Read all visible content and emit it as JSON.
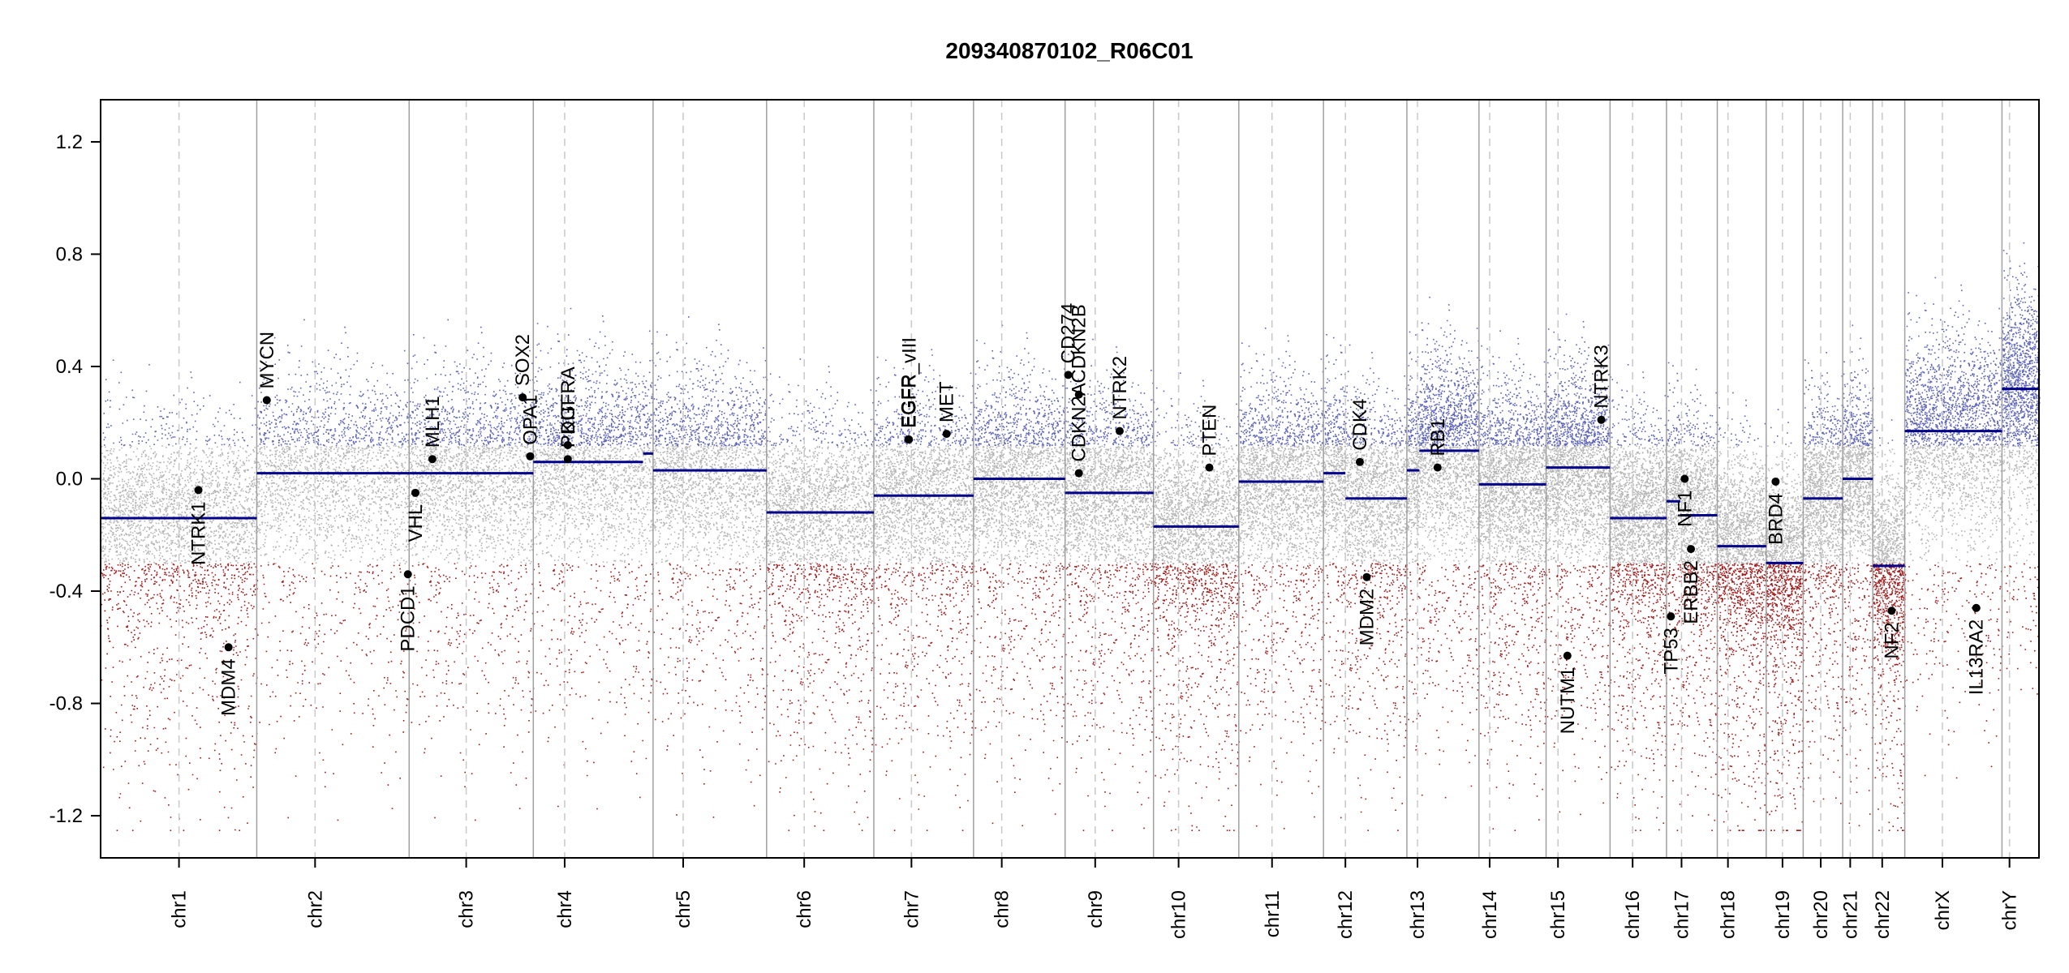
{
  "chart_data": {
    "type": "scatter",
    "title": "209340870102_R06C01",
    "xlabel": "",
    "ylabel": "",
    "ylim": [
      -1.35,
      1.35
    ],
    "y_ticks": [
      1.2,
      0.8,
      0.4,
      0.0,
      -0.4,
      -0.8,
      -1.2
    ],
    "y_tick_labels": [
      "1.2",
      "0.8",
      "0.4",
      "0.0",
      "-0.4",
      "-0.8",
      "-1.2"
    ],
    "grid": false,
    "colors": {
      "segment": "#00008b",
      "gain": "#5c63b8",
      "neutral": "#b4b4b4",
      "loss": "#a01a1a",
      "gene_point": "#000000",
      "chr_border": "#a0a0a0",
      "centromere": "#c8c8c8"
    },
    "chromosomes": [
      {
        "name": "chr1",
        "len": 249,
        "cen": 125,
        "segments": [
          {
            "s": 0,
            "e": 249,
            "v": -0.14
          }
        ]
      },
      {
        "name": "chr2",
        "len": 243,
        "cen": 93,
        "segments": [
          {
            "s": 0,
            "e": 243,
            "v": 0.02
          }
        ]
      },
      {
        "name": "chr3",
        "len": 198,
        "cen": 91,
        "segments": [
          {
            "s": 0,
            "e": 198,
            "v": 0.02
          }
        ]
      },
      {
        "name": "chr4",
        "len": 191,
        "cen": 50,
        "segments": [
          {
            "s": 0,
            "e": 175,
            "v": 0.06
          },
          {
            "s": 175,
            "e": 191,
            "v": 0.09
          }
        ]
      },
      {
        "name": "chr5",
        "len": 181,
        "cen": 48,
        "segments": [
          {
            "s": 0,
            "e": 181,
            "v": 0.03
          }
        ]
      },
      {
        "name": "chr6",
        "len": 171,
        "cen": 60,
        "segments": [
          {
            "s": 0,
            "e": 171,
            "v": -0.12
          }
        ]
      },
      {
        "name": "chr7",
        "len": 159,
        "cen": 60,
        "segments": [
          {
            "s": 0,
            "e": 159,
            "v": -0.06
          }
        ]
      },
      {
        "name": "chr8",
        "len": 146,
        "cen": 45,
        "segments": [
          {
            "s": 0,
            "e": 146,
            "v": 0.0
          }
        ]
      },
      {
        "name": "chr9",
        "len": 141,
        "cen": 48,
        "segments": [
          {
            "s": 0,
            "e": 141,
            "v": -0.05
          }
        ]
      },
      {
        "name": "chr10",
        "len": 136,
        "cen": 40,
        "segments": [
          {
            "s": 0,
            "e": 136,
            "v": -0.17
          }
        ]
      },
      {
        "name": "chr11",
        "len": 135,
        "cen": 53,
        "segments": [
          {
            "s": 0,
            "e": 135,
            "v": -0.01
          }
        ]
      },
      {
        "name": "chr12",
        "len": 133,
        "cen": 35,
        "segments": [
          {
            "s": 0,
            "e": 35,
            "v": 0.02
          },
          {
            "s": 35,
            "e": 133,
            "v": -0.07
          }
        ]
      },
      {
        "name": "chr13",
        "len": 115,
        "cen": 17,
        "segments": [
          {
            "s": 0,
            "e": 20,
            "v": 0.03
          },
          {
            "s": 20,
            "e": 115,
            "v": 0.1
          }
        ]
      },
      {
        "name": "chr14",
        "len": 107,
        "cen": 17,
        "segments": [
          {
            "s": 0,
            "e": 107,
            "v": -0.02
          }
        ]
      },
      {
        "name": "chr15",
        "len": 102,
        "cen": 19,
        "segments": [
          {
            "s": 0,
            "e": 102,
            "v": 0.04
          }
        ]
      },
      {
        "name": "chr16",
        "len": 90,
        "cen": 36,
        "segments": [
          {
            "s": 0,
            "e": 90,
            "v": -0.14
          }
        ]
      },
      {
        "name": "chr17",
        "len": 81,
        "cen": 24,
        "segments": [
          {
            "s": 0,
            "e": 22,
            "v": -0.08
          },
          {
            "s": 22,
            "e": 81,
            "v": -0.13
          }
        ]
      },
      {
        "name": "chr18",
        "len": 78,
        "cen": 17,
        "segments": [
          {
            "s": 0,
            "e": 78,
            "v": -0.24
          }
        ]
      },
      {
        "name": "chr19",
        "len": 59,
        "cen": 26,
        "segments": [
          {
            "s": 0,
            "e": 59,
            "v": -0.3
          }
        ]
      },
      {
        "name": "chr20",
        "len": 63,
        "cen": 28,
        "segments": [
          {
            "s": 0,
            "e": 63,
            "v": -0.07
          }
        ]
      },
      {
        "name": "chr21",
        "len": 48,
        "cen": 12,
        "segments": [
          {
            "s": 0,
            "e": 48,
            "v": 0.0
          }
        ]
      },
      {
        "name": "chr22",
        "len": 51,
        "cen": 15,
        "segments": [
          {
            "s": 0,
            "e": 51,
            "v": -0.31
          }
        ]
      },
      {
        "name": "chrX",
        "len": 155,
        "cen": 60,
        "segments": [
          {
            "s": 0,
            "e": 155,
            "v": 0.17
          }
        ]
      },
      {
        "name": "chrY",
        "len": 59,
        "cen": 12,
        "segments": [
          {
            "s": 0,
            "e": 59,
            "v": 0.32
          }
        ]
      }
    ],
    "genes": [
      {
        "name": "NTRK1",
        "chr": "chr1",
        "pos": 156,
        "v": -0.04,
        "label": "below"
      },
      {
        "name": "MDM4",
        "chr": "chr1",
        "pos": 204,
        "v": -0.6,
        "label": "below"
      },
      {
        "name": "MYCN",
        "chr": "chr2",
        "pos": 16,
        "v": 0.28,
        "label": "above"
      },
      {
        "name": "VHL",
        "chr": "chr3",
        "pos": 10,
        "v": -0.05,
        "label": "below"
      },
      {
        "name": "PDCD1",
        "chr": "chr2",
        "pos": 241,
        "v": -0.34,
        "label": "below"
      },
      {
        "name": "MLH1",
        "chr": "chr3",
        "pos": 37,
        "v": 0.07,
        "label": "above"
      },
      {
        "name": "SOX2",
        "chr": "chr3",
        "pos": 181,
        "v": 0.29,
        "label": "above"
      },
      {
        "name": "OPA1",
        "chr": "chr3",
        "pos": 193,
        "v": 0.08,
        "label": "above"
      },
      {
        "name": "KIT",
        "chr": "chr4",
        "pos": 55,
        "v": 0.12,
        "label": "above"
      },
      {
        "name": "PDGFRA",
        "chr": "chr4",
        "pos": 55,
        "v": 0.07,
        "label": "above"
      },
      {
        "name": "EGFR",
        "chr": "chr7",
        "pos": 55,
        "v": 0.14,
        "label": "above"
      },
      {
        "name": "EGFR_vIII",
        "chr": "chr7",
        "pos": 56,
        "v": 0.14,
        "label": "above"
      },
      {
        "name": "MET",
        "chr": "chr7",
        "pos": 116,
        "v": 0.16,
        "label": "above"
      },
      {
        "name": "CD274",
        "chr": "chr9",
        "pos": 5,
        "v": 0.37,
        "label": "above"
      },
      {
        "name": "CDKN2B",
        "chr": "chr9",
        "pos": 22,
        "v": 0.3,
        "label": "above"
      },
      {
        "name": "CDKN2A",
        "chr": "chr9",
        "pos": 22,
        "v": 0.02,
        "label": "above"
      },
      {
        "name": "NTRK2",
        "chr": "chr9",
        "pos": 87,
        "v": 0.17,
        "label": "above"
      },
      {
        "name": "PTEN",
        "chr": "chr10",
        "pos": 89,
        "v": 0.04,
        "label": "above"
      },
      {
        "name": "CDK4",
        "chr": "chr12",
        "pos": 58,
        "v": 0.06,
        "label": "above"
      },
      {
        "name": "MDM2",
        "chr": "chr12",
        "pos": 69,
        "v": -0.35,
        "label": "below"
      },
      {
        "name": "RB1",
        "chr": "chr13",
        "pos": 49,
        "v": 0.04,
        "label": "above"
      },
      {
        "name": "NUTM1",
        "chr": "chr15",
        "pos": 34,
        "v": -0.63,
        "label": "below"
      },
      {
        "name": "NTRK3",
        "chr": "chr15",
        "pos": 88,
        "v": 0.21,
        "label": "above"
      },
      {
        "name": "TP53",
        "chr": "chr17",
        "pos": 7,
        "v": -0.49,
        "label": "below"
      },
      {
        "name": "NF1",
        "chr": "chr17",
        "pos": 29,
        "v": 0.0,
        "label": "below"
      },
      {
        "name": "ERBB2",
        "chr": "chr17",
        "pos": 39,
        "v": -0.25,
        "label": "below"
      },
      {
        "name": "BRD4",
        "chr": "chr19",
        "pos": 15,
        "v": -0.01,
        "label": "below"
      },
      {
        "name": "NF2",
        "chr": "chr22",
        "pos": 30,
        "v": -0.47,
        "label": "below"
      },
      {
        "name": "IL13RA2",
        "chr": "chrX",
        "pos": 114,
        "v": -0.46,
        "label": "below"
      }
    ]
  }
}
